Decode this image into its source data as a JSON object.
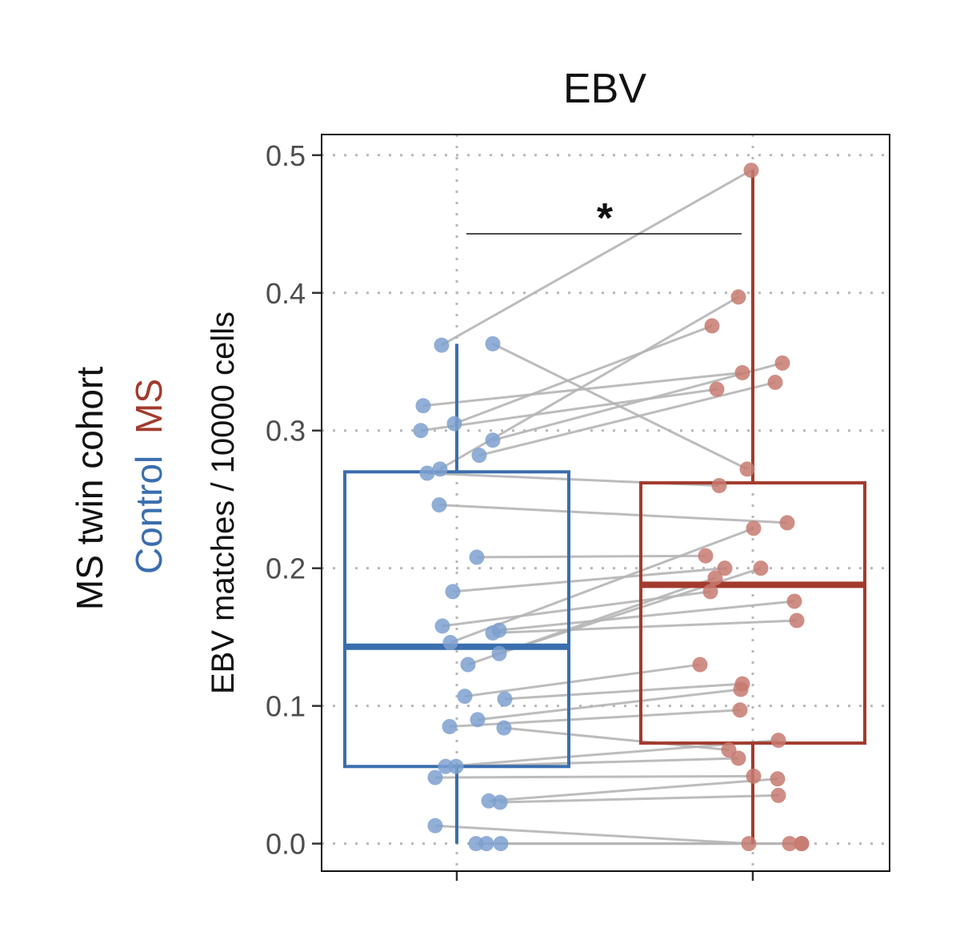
{
  "chart_data": {
    "type": "box",
    "title": "EBV",
    "ylabel": "EBV matches / 10000 cells",
    "legend_title": "MS twin cohort",
    "legend_entries": [
      {
        "label": "Control",
        "color": "#3a6ead"
      },
      {
        "label": "MS",
        "color": "#a23b2d"
      }
    ],
    "categories": [
      "Control",
      "MS"
    ],
    "ylim": [
      -0.02,
      0.515
    ],
    "yticks": [
      "0.0",
      "0.1",
      "0.2",
      "0.3",
      "0.4",
      "0.5"
    ],
    "ytick_values": [
      0.0,
      0.1,
      0.2,
      0.3,
      0.4,
      0.5
    ],
    "grid": true,
    "significance": {
      "label": "*",
      "from": "Control",
      "to": "MS"
    },
    "boxes": [
      {
        "name": "Control",
        "color": "#3a6ead",
        "q1": 0.056,
        "median": 0.143,
        "q3": 0.27,
        "whisker_low": 0.0,
        "whisker_high": 0.363
      },
      {
        "name": "MS",
        "color": "#a23b2d",
        "q1": 0.073,
        "median": 0.188,
        "q3": 0.262,
        "whisker_low": 0.0,
        "whisker_high": 0.489
      }
    ],
    "point_colors": {
      "Control": "#7ea0cf",
      "MS": "#c77a70"
    },
    "pairs": [
      {
        "control": 0.362,
        "ms": 0.489,
        "cx": -0.19,
        "mx": -0.02
      },
      {
        "control": 0.363,
        "ms": 0.272,
        "cx": 0.45,
        "mx": -0.07
      },
      {
        "control": 0.318,
        "ms": 0.342,
        "cx": -0.42,
        "mx": -0.13
      },
      {
        "control": 0.305,
        "ms": 0.376,
        "cx": -0.03,
        "mx": -0.51
      },
      {
        "control": 0.3,
        "ms": 0.33,
        "cx": -0.45,
        "mx": -0.45
      },
      {
        "control": 0.293,
        "ms": 0.349,
        "cx": 0.45,
        "mx": 0.37
      },
      {
        "control": 0.282,
        "ms": 0.335,
        "cx": 0.28,
        "mx": 0.28
      },
      {
        "control": 0.272,
        "ms": 0.397,
        "cx": -0.21,
        "mx": -0.18
      },
      {
        "control": 0.269,
        "ms": 0.26,
        "cx": -0.37,
        "mx": -0.42
      },
      {
        "control": 0.246,
        "ms": 0.233,
        "cx": -0.22,
        "mx": 0.43
      },
      {
        "control": 0.208,
        "ms": 0.209,
        "cx": 0.25,
        "mx": -0.59
      },
      {
        "control": 0.183,
        "ms": 0.2,
        "cx": -0.05,
        "mx": -0.35
      },
      {
        "control": 0.158,
        "ms": 0.183,
        "cx": -0.18,
        "mx": -0.53
      },
      {
        "control": 0.155,
        "ms": 0.176,
        "cx": 0.53,
        "mx": 0.52
      },
      {
        "control": 0.153,
        "ms": 0.162,
        "cx": 0.45,
        "mx": 0.55
      },
      {
        "control": 0.146,
        "ms": 0.229,
        "cx": -0.08,
        "mx": 0.01
      },
      {
        "control": 0.138,
        "ms": 0.2,
        "cx": 0.53,
        "mx": 0.1
      },
      {
        "control": 0.13,
        "ms": 0.193,
        "cx": 0.14,
        "mx": -0.47
      },
      {
        "control": 0.107,
        "ms": 0.13,
        "cx": 0.1,
        "mx": -0.66
      },
      {
        "control": 0.105,
        "ms": 0.116,
        "cx": 0.6,
        "mx": -0.13
      },
      {
        "control": 0.09,
        "ms": 0.112,
        "cx": 0.26,
        "mx": -0.15
      },
      {
        "control": 0.085,
        "ms": 0.097,
        "cx": -0.09,
        "mx": -0.16
      },
      {
        "control": 0.084,
        "ms": 0.068,
        "cx": 0.59,
        "mx": -0.3
      },
      {
        "control": 0.056,
        "ms": 0.075,
        "cx": -0.14,
        "mx": 0.32
      },
      {
        "control": 0.056,
        "ms": 0.062,
        "cx": -0.01,
        "mx": -0.18
      },
      {
        "control": 0.048,
        "ms": 0.049,
        "cx": -0.27,
        "mx": 0.01
      },
      {
        "control": 0.031,
        "ms": 0.047,
        "cx": 0.4,
        "mx": 0.31
      },
      {
        "control": 0.03,
        "ms": 0.035,
        "cx": 0.54,
        "mx": 0.32
      },
      {
        "control": 0.013,
        "ms": 0.0,
        "cx": -0.27,
        "mx": -0.05
      },
      {
        "control": 0.0,
        "ms": 0.0,
        "cx": 0.24,
        "mx": 0.46
      },
      {
        "control": 0.0,
        "ms": 0.0,
        "cx": 0.37,
        "mx": 0.61
      },
      {
        "control": 0.0,
        "ms": 0.0,
        "cx": 0.55,
        "mx": 0.61
      }
    ]
  }
}
